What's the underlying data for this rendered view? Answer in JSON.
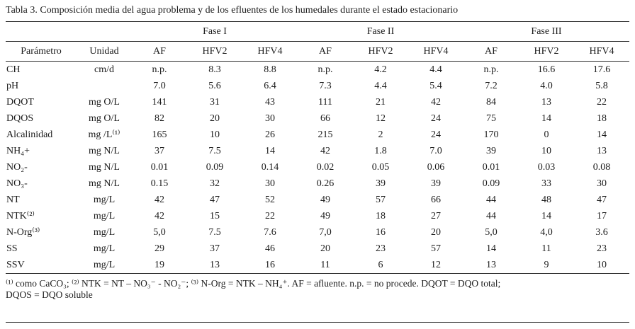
{
  "title": "Tabla 3. Composición media del agua problema y de los efluentes de los humedales durante el estado estacionario",
  "table": {
    "phase_headers": [
      "Fase I",
      "Fase II",
      "Fase III"
    ],
    "column_headers": [
      "Parámetro",
      "Unidad",
      "AF",
      "HFV2",
      "HFV4",
      "AF",
      "HFV2",
      "HFV4",
      "AF",
      "HFV2",
      "HFV4"
    ],
    "rows": [
      {
        "param": "CH",
        "unidad": "cm/d",
        "values": [
          "n.p.",
          "8.3",
          "8.8",
          "n.p.",
          "4.2",
          "4.4",
          "n.p.",
          "16.6",
          "17.6"
        ]
      },
      {
        "param": "pH",
        "unidad": "",
        "values": [
          "7.0",
          "5.6",
          "6.4",
          "7.3",
          "4.4",
          "5.4",
          "7.2",
          "4.0",
          "5.8"
        ]
      },
      {
        "param": "DQOT",
        "unidad": "mg O/L",
        "values": [
          "141",
          "31",
          "43",
          "111",
          "21",
          "42",
          "84",
          "13",
          "22"
        ]
      },
      {
        "param": "DQOS",
        "unidad": "mg O/L",
        "values": [
          "82",
          "20",
          "30",
          "66",
          "12",
          "24",
          "75",
          "14",
          "18"
        ]
      },
      {
        "param": "Alcalinidad",
        "unidad": "mg /L⁽¹⁾",
        "values": [
          "165",
          "10",
          "26",
          "215",
          "2",
          "24",
          "170",
          "0",
          "14"
        ]
      },
      {
        "param": "NH₄+",
        "unidad": "mg N/L",
        "values": [
          "37",
          "7.5",
          "14",
          "42",
          "1.8",
          "7.0",
          "39",
          "10",
          "13"
        ]
      },
      {
        "param": "NO₂-",
        "unidad": "mg N/L",
        "values": [
          "0.01",
          "0.09",
          "0.14",
          "0.02",
          "0.05",
          "0.06",
          "0.01",
          "0.03",
          "0.08"
        ]
      },
      {
        "param": "NO₃-",
        "unidad": "mg N/L",
        "values": [
          "0.15",
          "32",
          "30",
          "0.26",
          "39",
          "39",
          "0.09",
          "33",
          "30"
        ]
      },
      {
        "param": "NT",
        "unidad": "mg/L",
        "values": [
          "42",
          "47",
          "52",
          "49",
          "57",
          "66",
          "44",
          "48",
          "47"
        ]
      },
      {
        "param": "NTK⁽²⁾",
        "unidad": "mg/L",
        "values": [
          "42",
          "15",
          "22",
          "49",
          "18",
          "27",
          "44",
          "14",
          "17"
        ]
      },
      {
        "param": "N-Org⁽³⁾",
        "unidad": "mg/L",
        "values": [
          "5,0",
          "7.5",
          "7.6",
          "7,0",
          "16",
          "20",
          "5,0",
          "4,0",
          "3.6"
        ]
      },
      {
        "param": "SS",
        "unidad": "mg/L",
        "values": [
          "29",
          "37",
          "46",
          "20",
          "23",
          "57",
          "14",
          "11",
          "23"
        ]
      },
      {
        "param": "SSV",
        "unidad": "mg/L",
        "values": [
          "19",
          "13",
          "16",
          "11",
          "6",
          "12",
          "13",
          "9",
          "10"
        ]
      }
    ]
  },
  "footnotes": {
    "line1": "⁽¹⁾ como CaCO₃; ⁽²⁾ NTK = NT – NO₃⁻ - NO₂⁻; ⁽³⁾ N-Org = NTK – NH₄⁺. AF = afluente. n.p. = no procede. DQOT = DQO total;",
    "line2": "DQOS = DQO soluble"
  }
}
